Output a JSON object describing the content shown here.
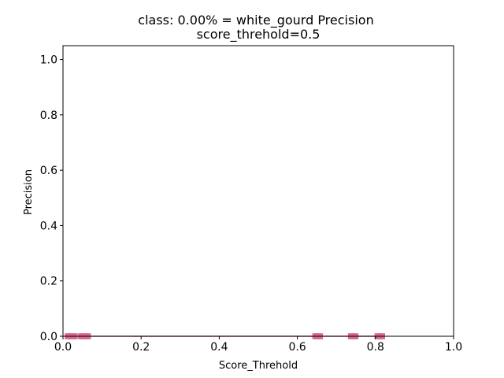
{
  "chart_data": {
    "type": "line",
    "title": "class: 0.00% = white_gourd Precision",
    "subtitle": "score_threhold=0.5",
    "xlabel": "Score_Threhold",
    "ylabel": "Precision",
    "xlim": [
      0.0,
      1.0
    ],
    "ylim": [
      0.0,
      1.05
    ],
    "x_ticks": [
      "0.0",
      "0.2",
      "0.4",
      "0.6",
      "0.8",
      "1.0"
    ],
    "y_ticks": [
      "0.0",
      "0.2",
      "0.4",
      "0.6",
      "0.8",
      "1.0"
    ],
    "grid": false,
    "series": [
      {
        "color": "#d9668c",
        "marker": "square",
        "line_style": "solid",
        "x": [
          0.012,
          0.018,
          0.024,
          0.03,
          0.046,
          0.052,
          0.058,
          0.064,
          0.646,
          0.652,
          0.658,
          0.737,
          0.743,
          0.749,
          0.805,
          0.811,
          0.817
        ],
        "y": [
          0,
          0,
          0,
          0,
          0,
          0,
          0,
          0,
          0,
          0,
          0,
          0,
          0,
          0,
          0,
          0,
          0
        ]
      }
    ]
  }
}
